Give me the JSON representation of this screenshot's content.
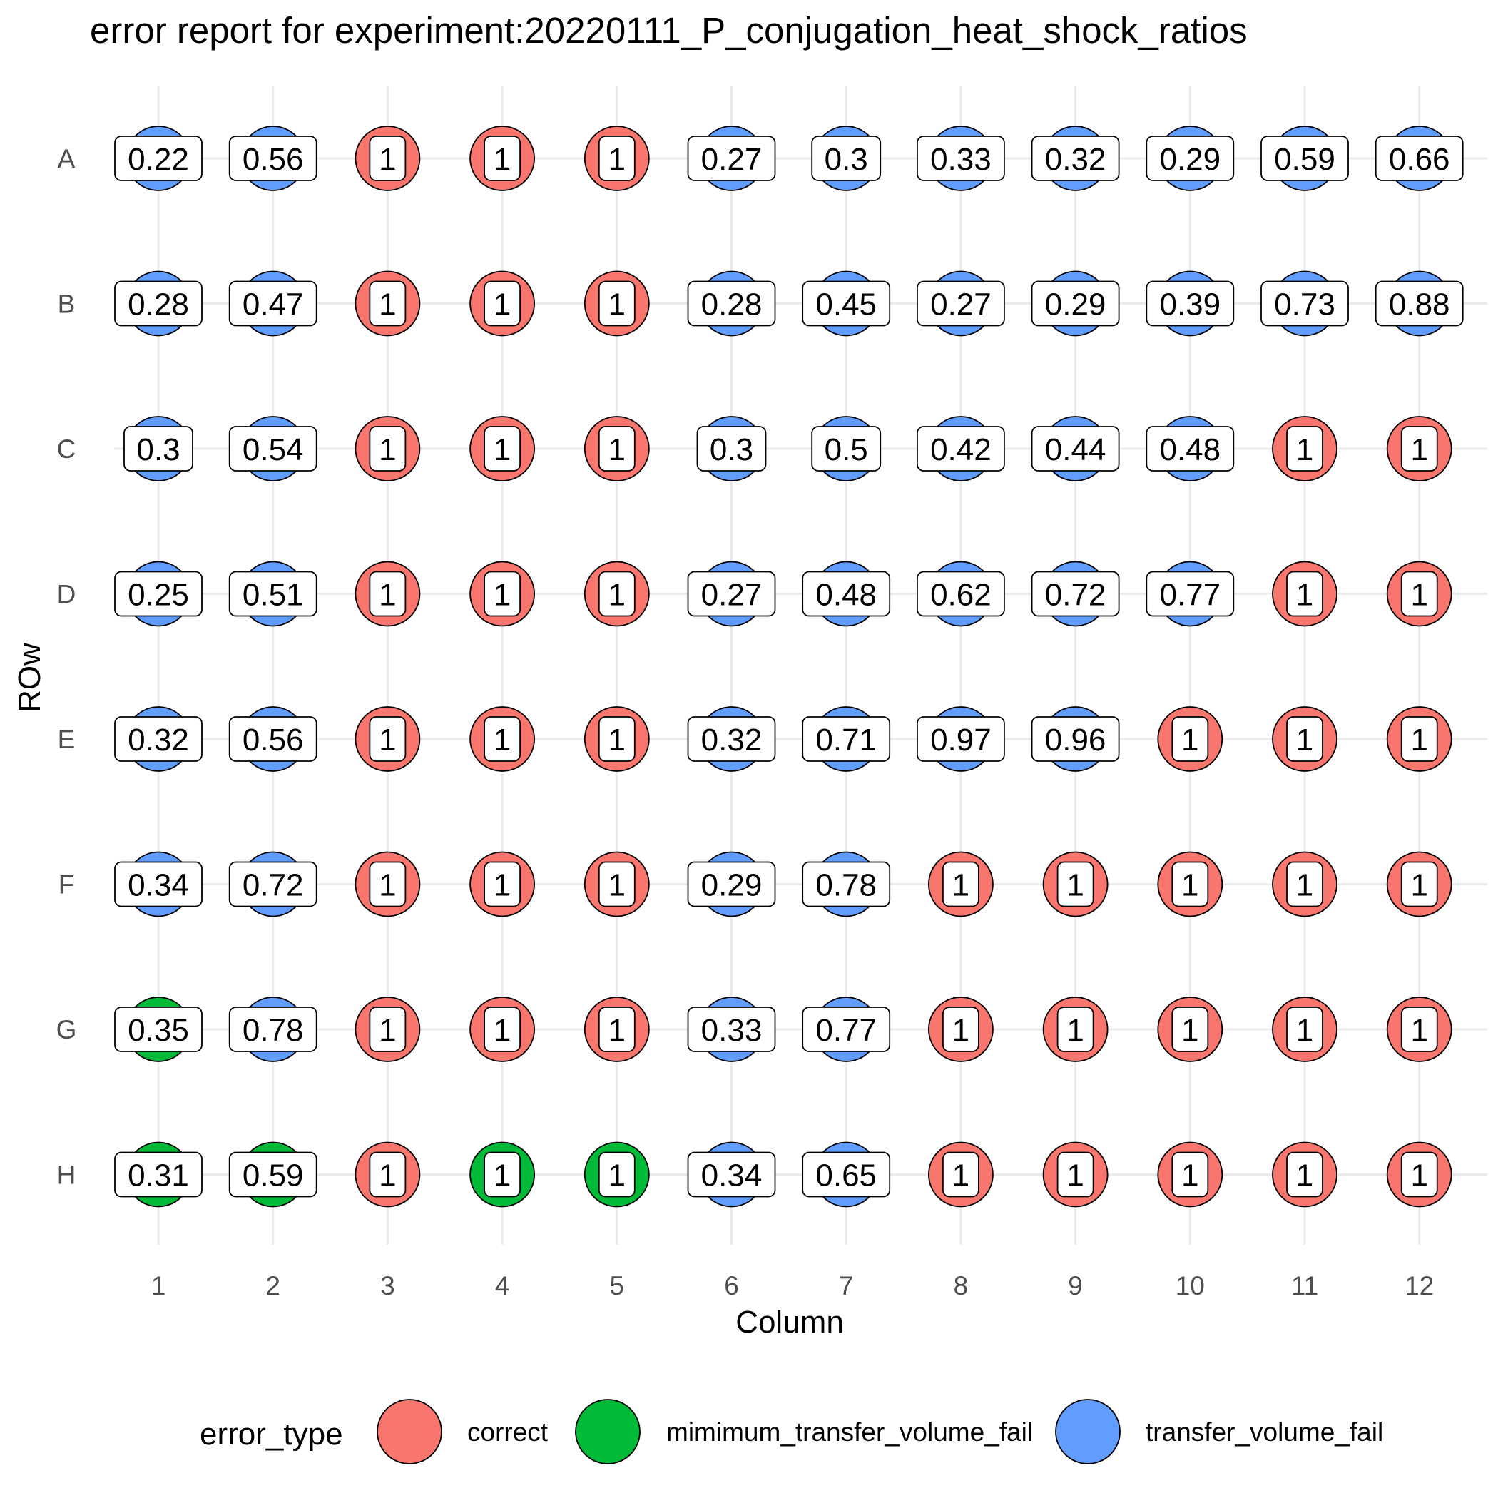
{
  "chart_data": {
    "type": "scatter",
    "title": "error report for experiment:20220111_P_conjugation_heat_shock_ratios",
    "xlabel": "Column",
    "ylabel": "ROw",
    "x_ticks": [
      "1",
      "2",
      "3",
      "4",
      "5",
      "6",
      "7",
      "8",
      "9",
      "10",
      "11",
      "12"
    ],
    "y_ticks": [
      "A",
      "B",
      "C",
      "D",
      "E",
      "F",
      "G",
      "H"
    ],
    "grid": true,
    "legend": {
      "title": "error_type",
      "position": "bottom",
      "entries": [
        {
          "key": "correct",
          "label": "correct",
          "color": "#F8766D"
        },
        {
          "key": "mimimum_transfer_volume_fail",
          "label": "mimimum_transfer_volume_fail",
          "color": "#00BA38"
        },
        {
          "key": "transfer_volume_fail",
          "label": "transfer_volume_fail",
          "color": "#619CFF"
        }
      ]
    },
    "rows": [
      {
        "row": "A",
        "values": [
          "0.22",
          "0.56",
          "1",
          "1",
          "1",
          "0.27",
          "0.3",
          "0.33",
          "0.32",
          "0.29",
          "0.59",
          "0.66"
        ],
        "types": [
          "transfer_volume_fail",
          "transfer_volume_fail",
          "correct",
          "correct",
          "correct",
          "transfer_volume_fail",
          "transfer_volume_fail",
          "transfer_volume_fail",
          "transfer_volume_fail",
          "transfer_volume_fail",
          "transfer_volume_fail",
          "transfer_volume_fail"
        ]
      },
      {
        "row": "B",
        "values": [
          "0.28",
          "0.47",
          "1",
          "1",
          "1",
          "0.28",
          "0.45",
          "0.27",
          "0.29",
          "0.39",
          "0.73",
          "0.88"
        ],
        "types": [
          "transfer_volume_fail",
          "transfer_volume_fail",
          "correct",
          "correct",
          "correct",
          "transfer_volume_fail",
          "transfer_volume_fail",
          "transfer_volume_fail",
          "transfer_volume_fail",
          "transfer_volume_fail",
          "transfer_volume_fail",
          "transfer_volume_fail"
        ]
      },
      {
        "row": "C",
        "values": [
          "0.3",
          "0.54",
          "1",
          "1",
          "1",
          "0.3",
          "0.5",
          "0.42",
          "0.44",
          "0.48",
          "1",
          "1"
        ],
        "types": [
          "transfer_volume_fail",
          "transfer_volume_fail",
          "correct",
          "correct",
          "correct",
          "transfer_volume_fail",
          "transfer_volume_fail",
          "transfer_volume_fail",
          "transfer_volume_fail",
          "transfer_volume_fail",
          "correct",
          "correct"
        ]
      },
      {
        "row": "D",
        "values": [
          "0.25",
          "0.51",
          "1",
          "1",
          "1",
          "0.27",
          "0.48",
          "0.62",
          "0.72",
          "0.77",
          "1",
          "1"
        ],
        "types": [
          "transfer_volume_fail",
          "transfer_volume_fail",
          "correct",
          "correct",
          "correct",
          "transfer_volume_fail",
          "transfer_volume_fail",
          "transfer_volume_fail",
          "transfer_volume_fail",
          "transfer_volume_fail",
          "correct",
          "correct"
        ]
      },
      {
        "row": "E",
        "values": [
          "0.32",
          "0.56",
          "1",
          "1",
          "1",
          "0.32",
          "0.71",
          "0.97",
          "0.96",
          "1",
          "1",
          "1"
        ],
        "types": [
          "transfer_volume_fail",
          "transfer_volume_fail",
          "correct",
          "correct",
          "correct",
          "transfer_volume_fail",
          "transfer_volume_fail",
          "transfer_volume_fail",
          "transfer_volume_fail",
          "correct",
          "correct",
          "correct"
        ]
      },
      {
        "row": "F",
        "values": [
          "0.34",
          "0.72",
          "1",
          "1",
          "1",
          "0.29",
          "0.78",
          "1",
          "1",
          "1",
          "1",
          "1"
        ],
        "types": [
          "transfer_volume_fail",
          "transfer_volume_fail",
          "correct",
          "correct",
          "correct",
          "transfer_volume_fail",
          "transfer_volume_fail",
          "correct",
          "correct",
          "correct",
          "correct",
          "correct"
        ]
      },
      {
        "row": "G",
        "values": [
          "0.35",
          "0.78",
          "1",
          "1",
          "1",
          "0.33",
          "0.77",
          "1",
          "1",
          "1",
          "1",
          "1"
        ],
        "types": [
          "mimimum_transfer_volume_fail",
          "transfer_volume_fail",
          "correct",
          "correct",
          "correct",
          "transfer_volume_fail",
          "transfer_volume_fail",
          "correct",
          "correct",
          "correct",
          "correct",
          "correct"
        ]
      },
      {
        "row": "H",
        "values": [
          "0.31",
          "0.59",
          "1",
          "1",
          "1",
          "0.34",
          "0.65",
          "1",
          "1",
          "1",
          "1",
          "1"
        ],
        "types": [
          "mimimum_transfer_volume_fail",
          "mimimum_transfer_volume_fail",
          "correct",
          "mimimum_transfer_volume_fail",
          "mimimum_transfer_volume_fail",
          "transfer_volume_fail",
          "transfer_volume_fail",
          "correct",
          "correct",
          "correct",
          "correct",
          "correct"
        ]
      }
    ]
  }
}
